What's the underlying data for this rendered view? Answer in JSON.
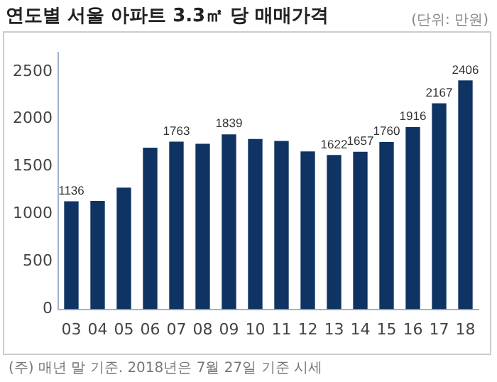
{
  "chart_data": {
    "type": "bar",
    "title": "연도별 서울 아파트 3.3㎡ 당 매매가격",
    "subtitle": "(단위: 만원)",
    "categories": [
      "03",
      "04",
      "05",
      "06",
      "07",
      "08",
      "09",
      "10",
      "11",
      "12",
      "13",
      "14",
      "15",
      "16",
      "17",
      "18"
    ],
    "values": [
      1136,
      1140,
      1280,
      1700,
      1763,
      1740,
      1839,
      1790,
      1770,
      1660,
      1622,
      1657,
      1760,
      1916,
      2167,
      2406
    ],
    "value_labels": [
      "1136",
      null,
      null,
      null,
      "1763",
      null,
      "1839",
      null,
      null,
      null,
      "1622",
      "1657",
      "1760",
      "1916",
      "2167",
      "2406"
    ],
    "color": "#0f3463",
    "ylim": [
      0,
      2700
    ],
    "yticks": [
      0,
      500,
      1000,
      1500,
      2000,
      2500
    ],
    "grid": false,
    "legend": false,
    "annotations": [
      "(주) 매년 말 기준. 2018년은 7월 27일 기준 시세"
    ]
  }
}
